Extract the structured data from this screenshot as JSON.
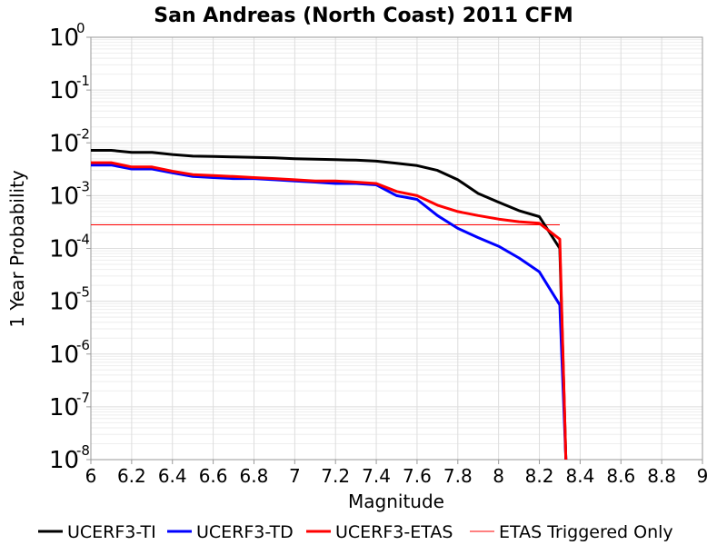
{
  "chart_data": {
    "type": "line",
    "title": "San Andreas (North Coast) 2011 CFM",
    "xlabel": "Magnitude",
    "ylabel": "1 Year Probability",
    "xlim": [
      6,
      9
    ],
    "ylim": [
      1e-08,
      1
    ],
    "yscale": "log",
    "grid": true,
    "legend_position": "bottom",
    "x_ticks": [
      "6",
      "6.2",
      "6.4",
      "6.6",
      "6.8",
      "7",
      "7.2",
      "7.4",
      "7.6",
      "7.8",
      "8",
      "8.2",
      "8.4",
      "8.6",
      "8.8",
      "9"
    ],
    "y_ticks": [
      {
        "base": "10",
        "exp": "0",
        "value": 1
      },
      {
        "base": "10",
        "exp": "-1",
        "value": 0.1
      },
      {
        "base": "10",
        "exp": "-2",
        "value": 0.01
      },
      {
        "base": "10",
        "exp": "-3",
        "value": 0.001
      },
      {
        "base": "10",
        "exp": "-4",
        "value": 0.0001
      },
      {
        "base": "10",
        "exp": "-5",
        "value": 1e-05
      },
      {
        "base": "10",
        "exp": "-6",
        "value": 1e-06
      },
      {
        "base": "10",
        "exp": "-7",
        "value": 1e-07
      },
      {
        "base": "10",
        "exp": "-8",
        "value": 1e-08
      }
    ],
    "series": [
      {
        "name": "UCERF3-TI",
        "color": "#000000",
        "x": [
          6.0,
          6.1,
          6.2,
          6.3,
          6.4,
          6.5,
          6.6,
          6.7,
          6.8,
          6.9,
          7.0,
          7.1,
          7.2,
          7.3,
          7.4,
          7.5,
          7.6,
          7.7,
          7.8,
          7.9,
          8.0,
          8.1,
          8.2,
          8.3,
          8.33
        ],
        "y": [
          0.0072,
          0.0072,
          0.0066,
          0.0066,
          0.006,
          0.0056,
          0.0055,
          0.0054,
          0.0053,
          0.0052,
          0.005,
          0.0049,
          0.0048,
          0.0047,
          0.0045,
          0.0041,
          0.0037,
          0.003,
          0.002,
          0.0011,
          0.00075,
          0.00052,
          0.0004,
          0.0001,
          1e-08
        ]
      },
      {
        "name": "UCERF3-TD",
        "color": "#0000ff",
        "x": [
          6.0,
          6.1,
          6.2,
          6.3,
          6.4,
          6.5,
          6.6,
          6.7,
          6.8,
          6.9,
          7.0,
          7.1,
          7.2,
          7.3,
          7.4,
          7.5,
          7.6,
          7.7,
          7.8,
          7.9,
          8.0,
          8.1,
          8.2,
          8.3,
          8.33
        ],
        "y": [
          0.0038,
          0.0038,
          0.0032,
          0.0032,
          0.0027,
          0.0023,
          0.0022,
          0.0021,
          0.0021,
          0.002,
          0.0019,
          0.0018,
          0.0017,
          0.0017,
          0.0016,
          0.001,
          0.00085,
          0.00042,
          0.00024,
          0.00016,
          0.00011,
          6.6e-05,
          3.6e-05,
          8.5e-06,
          1e-08
        ]
      },
      {
        "name": "UCERF3-ETAS",
        "color": "#ff0000",
        "x": [
          6.0,
          6.1,
          6.2,
          6.3,
          6.4,
          6.5,
          6.6,
          6.7,
          6.8,
          6.9,
          7.0,
          7.1,
          7.2,
          7.3,
          7.4,
          7.5,
          7.6,
          7.7,
          7.8,
          7.9,
          8.0,
          8.1,
          8.2,
          8.3,
          8.33
        ],
        "y": [
          0.0042,
          0.0042,
          0.0035,
          0.0035,
          0.0029,
          0.0025,
          0.0024,
          0.0023,
          0.0022,
          0.0021,
          0.002,
          0.0019,
          0.0019,
          0.0018,
          0.0017,
          0.0012,
          0.001,
          0.00066,
          0.0005,
          0.00042,
          0.00036,
          0.00032,
          0.0003,
          0.00015,
          1e-08
        ]
      },
      {
        "name": "ETAS Triggered Only",
        "color": "#ff0000",
        "legend_color": "#ff8080",
        "x": [
          6.0,
          8.3
        ],
        "y": [
          0.00028,
          0.00028
        ]
      }
    ]
  }
}
